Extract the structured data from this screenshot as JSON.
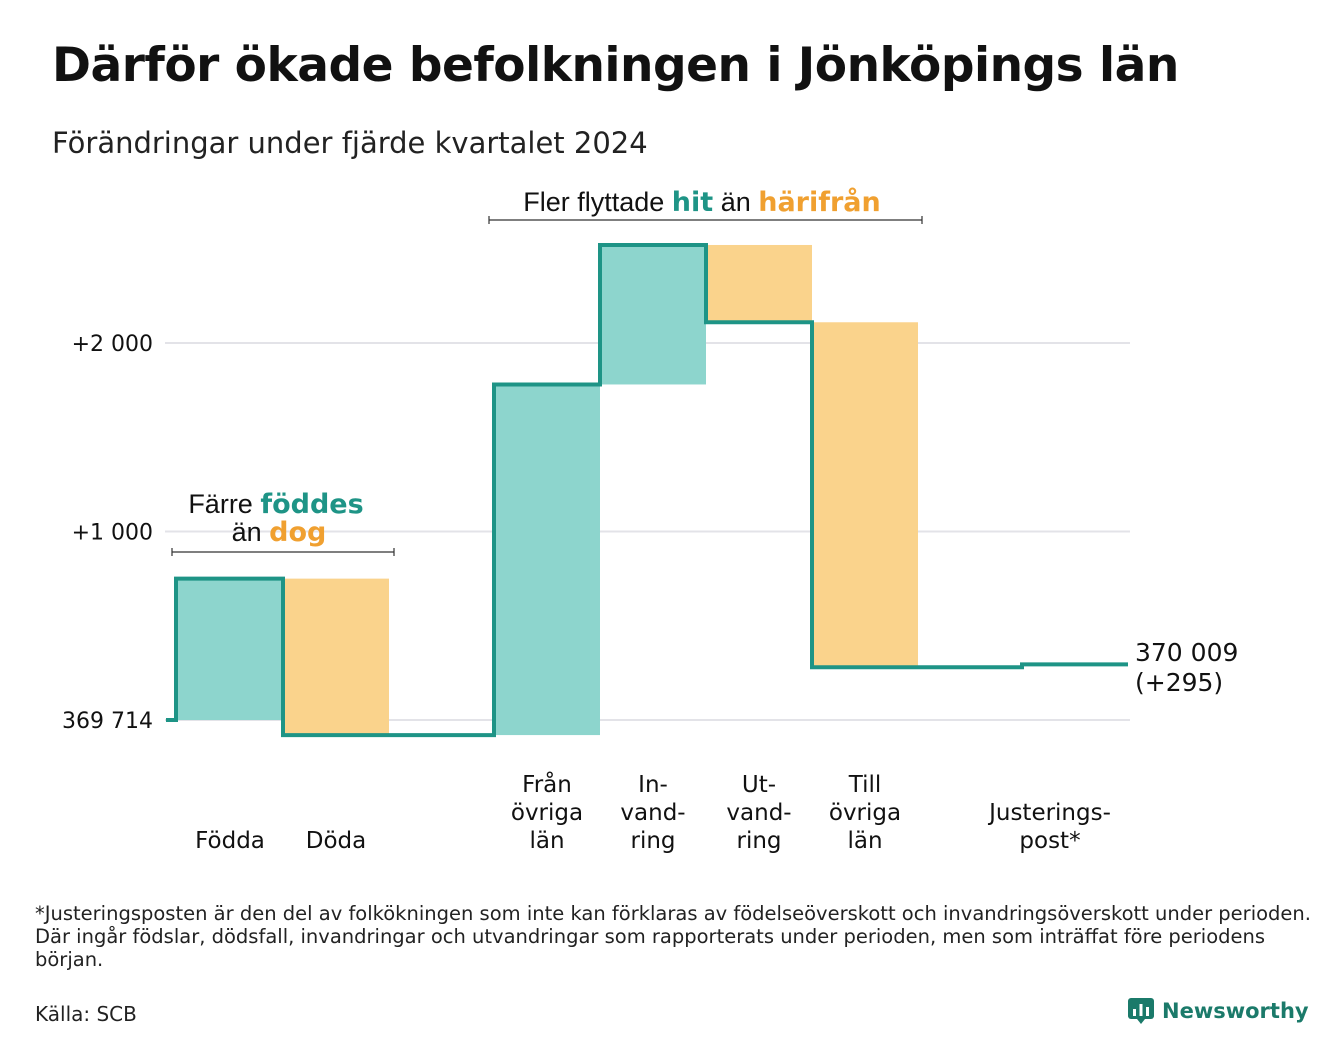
{
  "title": "Därför ökade befolkningen i Jönköpings län",
  "subtitle": "Förändringar under fjärde kvartalet 2024",
  "colors": {
    "line": "#1e9486",
    "inflow": "#8dd5cd",
    "outflow": "#fad38c",
    "grid": "#e3e3e8",
    "hit": "#1e9486",
    "harifran": "#f0a030"
  },
  "annotations": {
    "births": {
      "prefix": "Färre ",
      "highlight1": "föddes",
      "line2_prefix": "än ",
      "highlight2": "dog"
    },
    "migration": {
      "prefix": "Fler flyttade ",
      "highlight1": "hit",
      "middle": " än ",
      "highlight2": "härifrån"
    }
  },
  "end_label": {
    "value": "370 009",
    "change": "(+295)"
  },
  "chart_data": {
    "type": "waterfall",
    "base_value": 369714,
    "end_value": 370009,
    "y_ticks": [
      {
        "value": 0,
        "label": "369 714"
      },
      {
        "value": 1000,
        "label": "+1 000"
      },
      {
        "value": 2000,
        "label": "+2 000"
      }
    ],
    "ylim": [
      -100,
      2650
    ],
    "grid": true,
    "steps": [
      {
        "label": [
          "Födda"
        ],
        "delta": 750,
        "type": "inflow"
      },
      {
        "label": [
          "Döda"
        ],
        "delta": -830,
        "type": "outflow"
      },
      {
        "label": [
          "Från",
          "övriga",
          "län"
        ],
        "delta": 1860,
        "type": "inflow"
      },
      {
        "label": [
          "In-",
          "vand-",
          "ring"
        ],
        "delta": 740,
        "type": "inflow"
      },
      {
        "label": [
          "Ut-",
          "vand-",
          "ring"
        ],
        "delta": -410,
        "type": "outflow"
      },
      {
        "label": [
          "Till",
          "övriga",
          "län"
        ],
        "delta": -1830,
        "type": "outflow"
      },
      {
        "label": [
          "Justerings-",
          "post*"
        ],
        "delta": 15,
        "type": "adjustment"
      }
    ]
  },
  "footnote": "*Justeringsposten är den del av folkökningen som inte kan förklaras av födelseöverskott och invandringsöverskott under perioden. Där ingår födslar, dödsfall, invandringar och utvandringar som rapporterats under perioden, men som inträffat före periodens början.",
  "source": "Källa: SCB",
  "brand": {
    "name": "Newsworthy",
    "icon": "bar-chart-icon"
  }
}
